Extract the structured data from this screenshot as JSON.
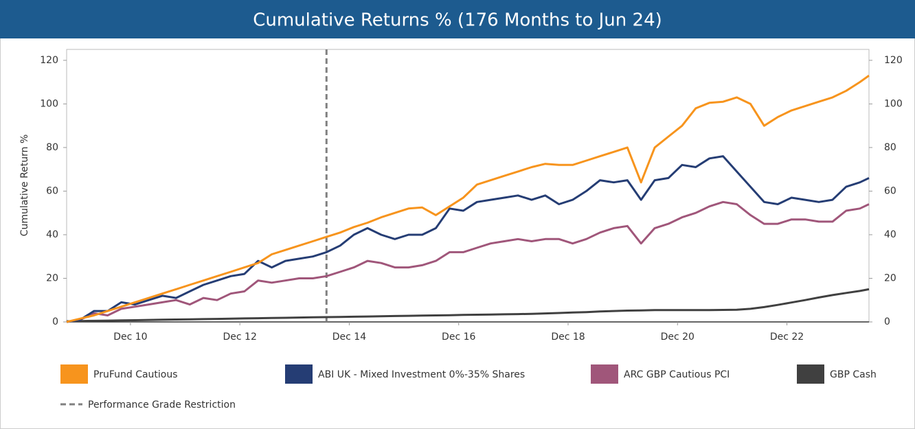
{
  "chart_data": {
    "type": "line",
    "title": "Cumulative Returns % (176 Months to Jun 24)",
    "y_label": "Cumulative Return %",
    "x": [
      "2009-10",
      "2010-01",
      "2010-04",
      "2010-07",
      "2010-10",
      "2011-01",
      "2011-04",
      "2011-07",
      "2011-10",
      "2012-01",
      "2012-04",
      "2012-07",
      "2012-10",
      "2013-01",
      "2013-04",
      "2013-07",
      "2013-10",
      "2014-01",
      "2014-04",
      "2014-07",
      "2014-10",
      "2015-01",
      "2015-04",
      "2015-07",
      "2015-10",
      "2016-01",
      "2016-04",
      "2016-07",
      "2016-10",
      "2017-01",
      "2017-04",
      "2017-07",
      "2017-10",
      "2018-01",
      "2018-04",
      "2018-07",
      "2018-10",
      "2019-01",
      "2019-04",
      "2019-07",
      "2019-10",
      "2020-01",
      "2020-04",
      "2020-07",
      "2020-10",
      "2021-01",
      "2021-04",
      "2021-07",
      "2021-10",
      "2022-01",
      "2022-04",
      "2022-07",
      "2022-10",
      "2023-01",
      "2023-04",
      "2023-07",
      "2023-10",
      "2024-01",
      "2024-04",
      "2024-06"
    ],
    "series": [
      {
        "name": "PruFund Cautious",
        "color": "#f7941d",
        "values": [
          0,
          1.5,
          3,
          5,
          7,
          9,
          11,
          13,
          15,
          17,
          19,
          21,
          23,
          25,
          27,
          31,
          33,
          35,
          37,
          39,
          41,
          43.5,
          45.5,
          48,
          50,
          52,
          52.5,
          49,
          53,
          57,
          63,
          65,
          67,
          69,
          71,
          72.5,
          72,
          72,
          74,
          76,
          78,
          80,
          64,
          80,
          85,
          90,
          98,
          100.5,
          101,
          103,
          100,
          90,
          94,
          97,
          99,
          101,
          103,
          106,
          110,
          113
        ]
      },
      {
        "name": "ABI UK - Mixed Investment 0%-35% Shares",
        "color": "#253d74",
        "values": [
          0,
          1,
          5,
          5,
          9,
          8,
          10,
          12,
          11,
          14,
          17,
          19,
          21,
          22,
          28,
          25,
          28,
          29,
          30,
          32,
          35,
          40,
          43,
          40,
          38,
          40,
          40,
          43,
          52,
          51,
          55,
          56,
          57,
          58,
          56,
          58,
          54,
          56,
          60,
          65,
          64,
          65,
          56,
          65,
          66,
          72,
          71,
          75,
          76,
          69,
          62,
          55,
          54,
          57,
          56,
          55,
          56,
          62,
          64,
          66
        ]
      },
      {
        "name": "ARC GBP Cautious PCI",
        "color": "#a0567a",
        "values": [
          0,
          1,
          4,
          3,
          6,
          7,
          8,
          9,
          10,
          8,
          11,
          10,
          13,
          14,
          19,
          18,
          19,
          20,
          20,
          21,
          23,
          25,
          28,
          27,
          25,
          25,
          26,
          28,
          32,
          32,
          34,
          36,
          37,
          38,
          37,
          38,
          38,
          36,
          38,
          41,
          43,
          44,
          36,
          43,
          45,
          48,
          50,
          53,
          55,
          54,
          49,
          45,
          45,
          47,
          47,
          46,
          46,
          51,
          52,
          54
        ]
      },
      {
        "name": "GBP Cash",
        "color": "#404040",
        "values": [
          0.3,
          0.4,
          0.5,
          0.6,
          0.7,
          0.8,
          0.9,
          1.0,
          1.1,
          1.2,
          1.3,
          1.4,
          1.5,
          1.6,
          1.7,
          1.8,
          1.9,
          2.0,
          2.1,
          2.2,
          2.3,
          2.4,
          2.5,
          2.6,
          2.7,
          2.8,
          2.9,
          3.0,
          3.1,
          3.2,
          3.3,
          3.4,
          3.5,
          3.6,
          3.7,
          3.9,
          4.1,
          4.3,
          4.5,
          4.8,
          5.0,
          5.2,
          5.3,
          5.4,
          5.4,
          5.4,
          5.4,
          5.4,
          5.5,
          5.6,
          6.0,
          6.8,
          7.8,
          8.9,
          10.0,
          11.2,
          12.3,
          13.3,
          14.2,
          15
        ]
      }
    ],
    "annotation": {
      "label": "Performance Grade Restriction",
      "x": "2014-07",
      "color": "#808080"
    },
    "xlim": [
      "2009-10",
      "2024-06"
    ],
    "xticks": [
      {
        "value": "2010-12",
        "label": "Dec 10"
      },
      {
        "value": "2012-12",
        "label": "Dec 12"
      },
      {
        "value": "2014-12",
        "label": "Dec 14"
      },
      {
        "value": "2016-12",
        "label": "Dec 16"
      },
      {
        "value": "2018-12",
        "label": "Dec 18"
      },
      {
        "value": "2020-12",
        "label": "Dec 20"
      },
      {
        "value": "2022-12",
        "label": "Dec 22"
      }
    ],
    "ylim": [
      0,
      125
    ],
    "yticks": [
      0,
      20,
      40,
      60,
      80,
      100,
      120
    ],
    "y2lim": [
      0,
      125
    ],
    "y2ticks": [
      0,
      20,
      40,
      60,
      80,
      100,
      120
    ],
    "grid": false,
    "legend": "bottom"
  }
}
